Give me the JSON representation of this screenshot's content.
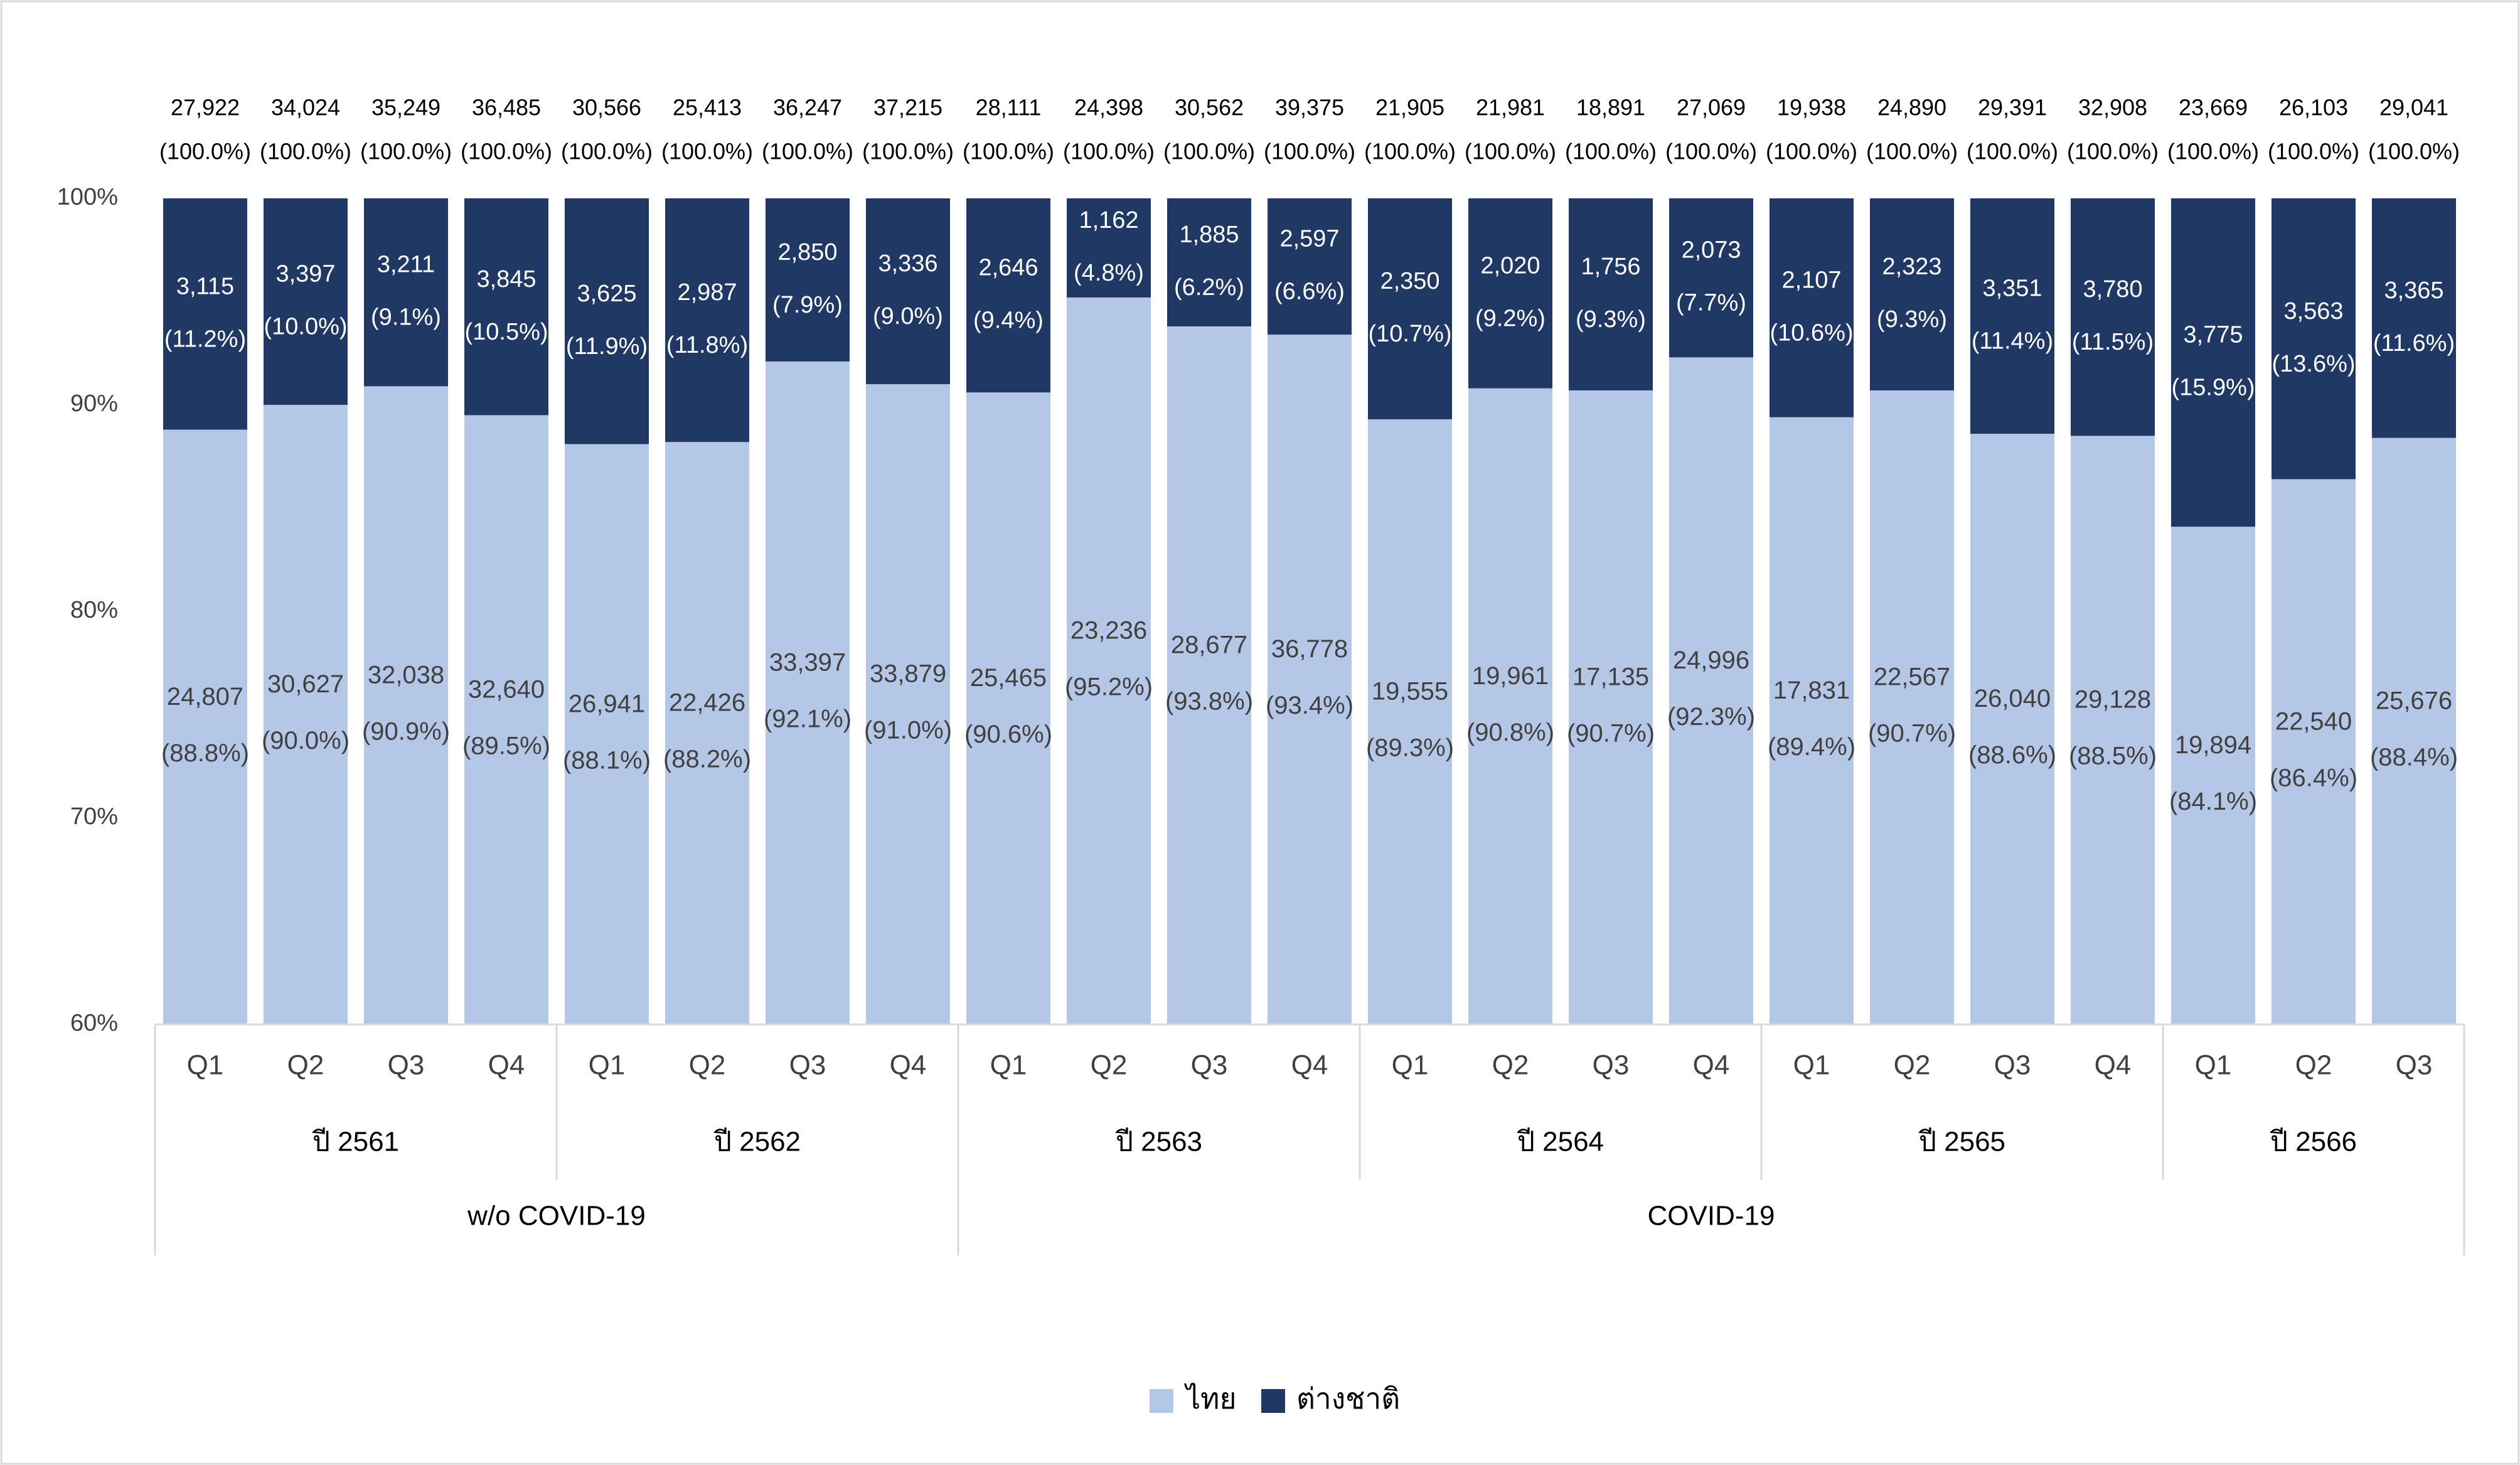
{
  "chart_data": {
    "type": "bar",
    "stacked": "percent",
    "title": "",
    "xlabel": "",
    "ylabel": "",
    "ylim": [
      60,
      100
    ],
    "y_ticks": [
      "60%",
      "70%",
      "80%",
      "90%",
      "100%"
    ],
    "grid": false,
    "legend_position": "bottom-center",
    "colors": {
      "thai": "#b4c7e7",
      "foreign": "#203864",
      "frame": "#d9d9d9",
      "text": "#000000",
      "label_dark": "#404040",
      "label_light": "#ffffff"
    },
    "categories": [
      "Q1",
      "Q2",
      "Q3",
      "Q4",
      "Q1",
      "Q2",
      "Q3",
      "Q4",
      "Q1",
      "Q2",
      "Q3",
      "Q4",
      "Q1",
      "Q2",
      "Q3",
      "Q4",
      "Q1",
      "Q2",
      "Q3",
      "Q4",
      "Q1",
      "Q2",
      "Q3"
    ],
    "years": [
      {
        "label": "ปี 2561",
        "count": 4
      },
      {
        "label": "ปี 2562",
        "count": 4
      },
      {
        "label": "ปี 2563",
        "count": 4
      },
      {
        "label": "ปี 2564",
        "count": 4
      },
      {
        "label": "ปี 2565",
        "count": 4
      },
      {
        "label": "ปี 2566",
        "count": 3
      }
    ],
    "periods": [
      {
        "label": "w/o COVID-19",
        "count": 8
      },
      {
        "label": "COVID-19",
        "count": 15
      }
    ],
    "totals": [
      "27,922",
      "34,024",
      "35,249",
      "36,485",
      "30,566",
      "25,413",
      "36,247",
      "37,215",
      "28,111",
      "24,398",
      "30,562",
      "39,375",
      "21,905",
      "21,981",
      "18,891",
      "27,069",
      "19,938",
      "24,890",
      "29,391",
      "32,908",
      "23,669",
      "26,103",
      "29,041"
    ],
    "total_pct": "(100.0%)",
    "series": [
      {
        "name": "ไทย",
        "values": [
          24807,
          30627,
          32038,
          32640,
          26941,
          22426,
          33397,
          33879,
          25465,
          23236,
          28677,
          36778,
          19555,
          19961,
          17135,
          24996,
          17831,
          22567,
          26040,
          29128,
          19894,
          22540,
          25676
        ],
        "value_labels": [
          "24,807",
          "30,627",
          "32,038",
          "32,640",
          "26,941",
          "22,426",
          "33,397",
          "33,879",
          "25,465",
          "23,236",
          "28,677",
          "36,778",
          "19,555",
          "19,961",
          "17,135",
          "24,996",
          "17,831",
          "22,567",
          "26,040",
          "29,128",
          "19,894",
          "22,540",
          "25,676"
        ],
        "percents": [
          88.8,
          90.0,
          90.9,
          89.5,
          88.1,
          88.2,
          92.1,
          91.0,
          90.6,
          95.2,
          93.8,
          93.4,
          89.3,
          90.8,
          90.7,
          92.3,
          89.4,
          90.7,
          88.6,
          88.5,
          84.1,
          86.4,
          88.4
        ],
        "percent_labels": [
          "(88.8%)",
          "(90.0%)",
          "(90.9%)",
          "(89.5%)",
          "(88.1%)",
          "(88.2%)",
          "(92.1%)",
          "(91.0%)",
          "(90.6%)",
          "(95.2%)",
          "(93.8%)",
          "(93.4%)",
          "(89.3%)",
          "(90.8%)",
          "(90.7%)",
          "(92.3%)",
          "(89.4%)",
          "(90.7%)",
          "(88.6%)",
          "(88.5%)",
          "(84.1%)",
          "(86.4%)",
          "(88.4%)"
        ]
      },
      {
        "name": "ต่างชาติ",
        "values": [
          3115,
          3397,
          3211,
          3845,
          3625,
          2987,
          2850,
          3336,
          2646,
          1162,
          1885,
          2597,
          2350,
          2020,
          1756,
          2073,
          2107,
          2323,
          3351,
          3780,
          3775,
          3563,
          3365
        ],
        "value_labels": [
          "3,115",
          "3,397",
          "3,211",
          "3,845",
          "3,625",
          "2,987",
          "2,850",
          "3,336",
          "2,646",
          "1,162",
          "1,885",
          "2,597",
          "2,350",
          "2,020",
          "1,756",
          "2,073",
          "2,107",
          "2,323",
          "3,351",
          "3,780",
          "3,775",
          "3,563",
          "3,365"
        ],
        "percents": [
          11.2,
          10.0,
          9.1,
          10.5,
          11.9,
          11.8,
          7.9,
          9.0,
          9.4,
          4.8,
          6.2,
          6.6,
          10.7,
          9.2,
          9.3,
          7.7,
          10.6,
          9.3,
          11.4,
          11.5,
          15.9,
          13.6,
          11.6
        ],
        "percent_labels": [
          "(11.2%)",
          "(10.0%)",
          "(9.1%)",
          "(10.5%)",
          "(11.9%)",
          "(11.8%)",
          "(7.9%)",
          "(9.0%)",
          "(9.4%)",
          "(4.8%)",
          "(6.2%)",
          "(6.6%)",
          "(10.7%)",
          "(9.2%)",
          "(9.3%)",
          "(7.7%)",
          "(10.6%)",
          "(9.3%)",
          "(11.4%)",
          "(11.5%)",
          "(15.9%)",
          "(13.6%)",
          "(11.6%)"
        ]
      }
    ]
  }
}
